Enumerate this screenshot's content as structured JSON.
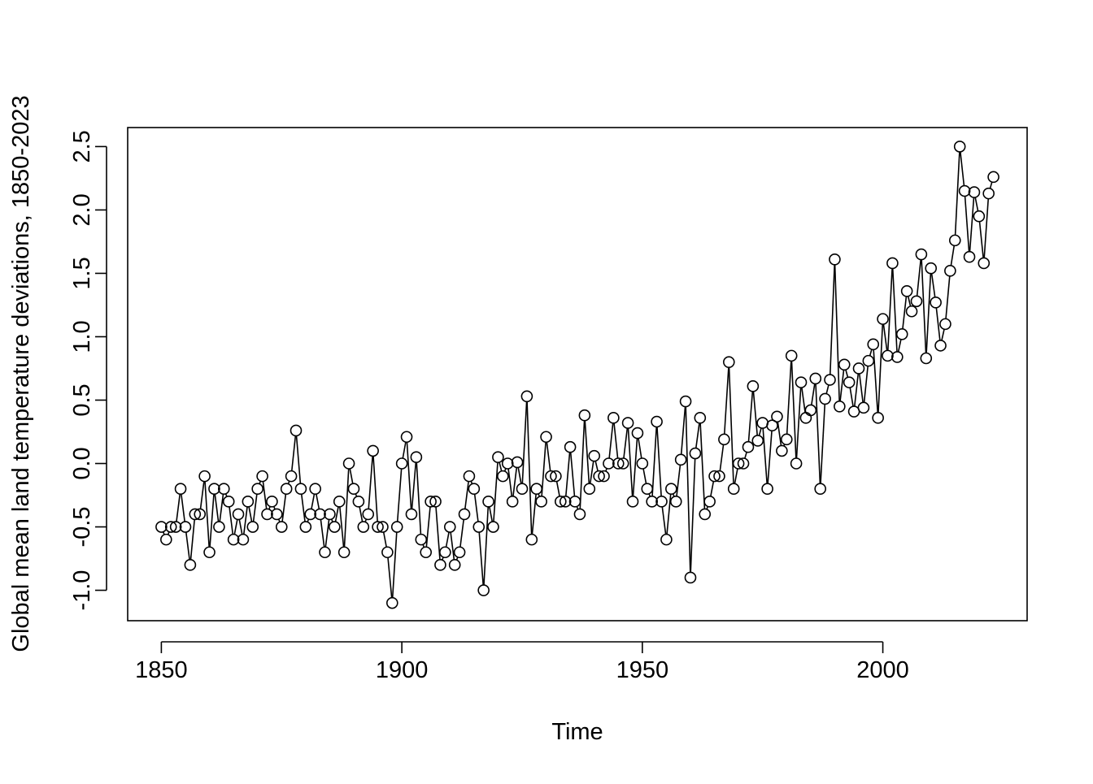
{
  "chart_data": {
    "type": "line",
    "markers": "open-circle",
    "title": "",
    "xlabel": "Time",
    "ylabel": "Global mean land temperature deviations, 1850-2023",
    "xlim": [
      1843,
      2030
    ],
    "ylim": [
      -1.24,
      2.65
    ],
    "x_ticks": [
      1850,
      1900,
      1950,
      2000
    ],
    "x_tick_labels": [
      "1850",
      "1900",
      "1950",
      "2000"
    ],
    "y_ticks": [
      -1.0,
      -0.5,
      0.0,
      0.5,
      1.0,
      1.5,
      2.0,
      2.5
    ],
    "y_tick_labels": [
      "-1.0",
      "-0.5",
      "0.0",
      "0.5",
      "1.0",
      "1.5",
      "2.0",
      "2.5"
    ],
    "grid": false,
    "legend": "none",
    "x_start": 1850,
    "x_end": 2023,
    "series": [
      {
        "values": [
          -0.5,
          -0.6,
          -0.5,
          -0.5,
          -0.2,
          -0.5,
          -0.8,
          -0.4,
          -0.4,
          -0.1,
          -0.7,
          -0.2,
          -0.5,
          -0.2,
          -0.3,
          -0.6,
          -0.4,
          -0.6,
          -0.3,
          -0.5,
          -0.2,
          -0.1,
          -0.4,
          -0.3,
          -0.4,
          -0.5,
          -0.2,
          -0.1,
          0.26,
          -0.2,
          -0.5,
          -0.4,
          -0.2,
          -0.4,
          -0.7,
          -0.4,
          -0.5,
          -0.3,
          -0.7,
          0.0,
          -0.2,
          -0.3,
          -0.5,
          -0.4,
          0.1,
          -0.5,
          -0.5,
          -0.7,
          -1.1,
          -0.5,
          0.0,
          0.21,
          -0.4,
          0.05,
          -0.6,
          -0.7,
          -0.3,
          -0.3,
          -0.8,
          -0.7,
          -0.5,
          -0.8,
          -0.7,
          -0.4,
          -0.1,
          -0.2,
          -0.5,
          -1.0,
          -0.3,
          -0.5,
          0.05,
          -0.1,
          0.0,
          -0.3,
          0.01,
          -0.2,
          0.53,
          -0.6,
          -0.2,
          -0.3,
          0.21,
          -0.1,
          -0.1,
          -0.3,
          -0.3,
          0.13,
          -0.3,
          -0.4,
          0.38,
          -0.2,
          0.06,
          -0.1,
          -0.1,
          0.0,
          0.36,
          0.0,
          0.0,
          0.32,
          -0.3,
          0.24,
          0.0,
          -0.2,
          -0.3,
          0.33,
          -0.3,
          -0.6,
          -0.2,
          -0.3,
          0.03,
          0.49,
          -0.9,
          0.08,
          0.36,
          -0.4,
          -0.3,
          -0.1,
          -0.1,
          0.19,
          0.8,
          -0.2,
          0.0,
          0.0,
          0.13,
          0.61,
          0.18,
          0.32,
          -0.2,
          0.3,
          0.37,
          0.1,
          0.19,
          0.85,
          0.0,
          0.64,
          0.36,
          0.42,
          0.67,
          -0.2,
          0.51,
          0.66,
          1.61,
          0.45,
          0.78,
          0.64,
          0.41,
          0.75,
          0.44,
          0.81,
          0.94,
          0.36,
          1.14,
          0.85,
          1.58,
          0.84,
          1.02,
          1.36,
          1.2,
          1.28,
          1.65,
          0.83,
          1.54,
          1.27,
          0.93,
          1.1,
          1.52,
          1.76,
          2.5,
          2.15,
          1.63,
          2.14,
          1.95,
          1.58,
          2.13,
          2.26
        ]
      }
    ]
  }
}
